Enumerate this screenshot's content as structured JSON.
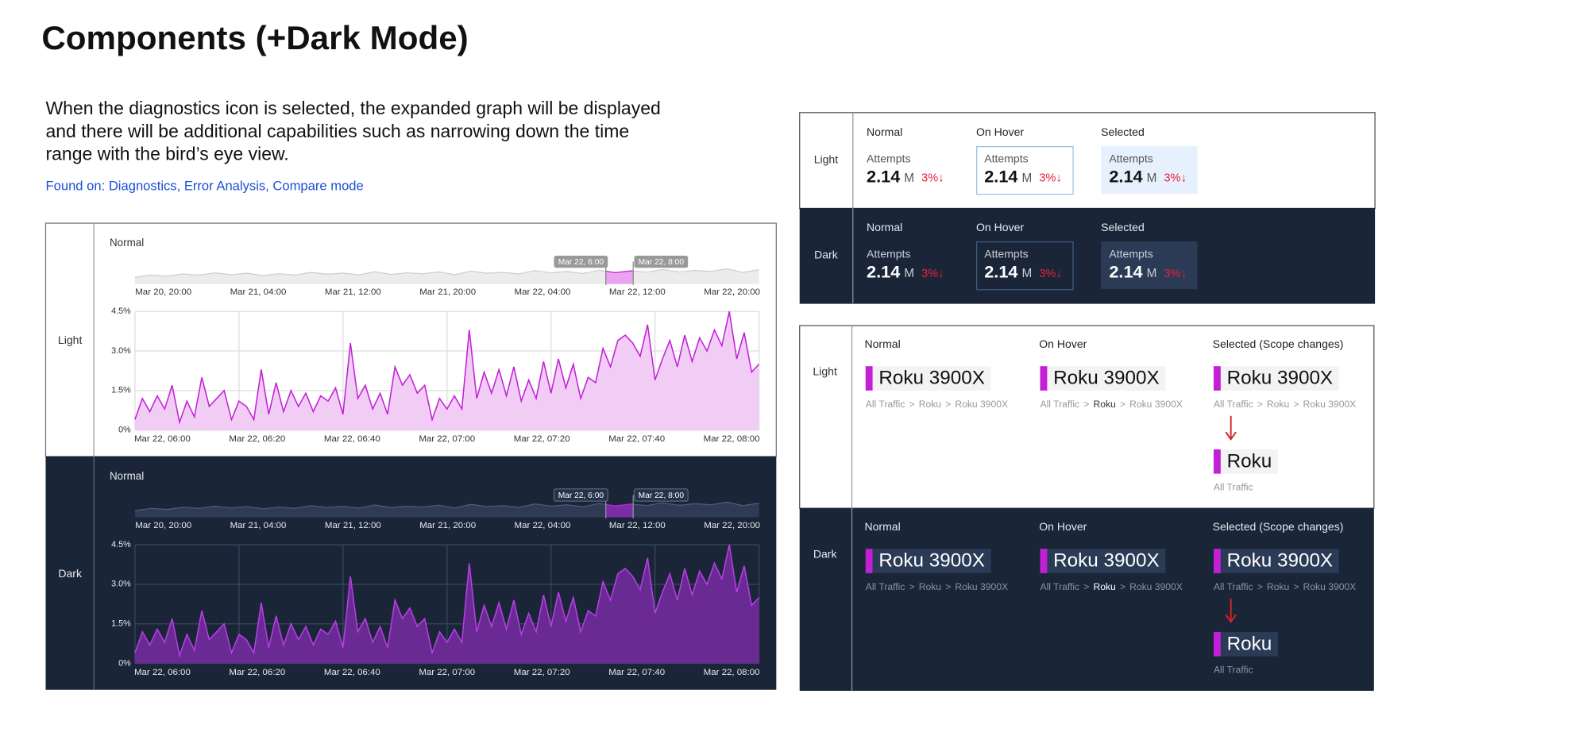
{
  "title": "Components (+Dark Mode)",
  "description": {
    "lines": [
      "When the diagnostics icon is selected, the expanded graph will be displayed",
      "and there will be additional capabilities such as narrowing down the time",
      "range with the bird’s eye view."
    ],
    "found_on": "Found on: Diagnostics, Error Analysis, Compare mode"
  },
  "graph_panel": {
    "sections": [
      {
        "theme": "Light",
        "label": "Normal"
      },
      {
        "theme": "Dark",
        "label": "Normal"
      }
    ],
    "chart_data": {
      "type": "area",
      "color": "#c21fd6",
      "overview": {
        "values": [
          3,
          4,
          3.5,
          4.5,
          4,
          5,
          4.2,
          4.8,
          3.8,
          4.6,
          4,
          5.2,
          4.4,
          4.9,
          4.1,
          5.5,
          4.3,
          5,
          4.6,
          5.4,
          4.2,
          5.8,
          4.8,
          5.2,
          4.5,
          6,
          5,
          5.6,
          4.7,
          6.2,
          5.1,
          5.9,
          5.3,
          6.5,
          5.4,
          6.1,
          5.6,
          6.8,
          5.2,
          6.4
        ],
        "xticks": [
          "Mar 20, 20:00",
          "Mar 21, 04:00",
          "Mar 21, 12:00",
          "Mar 21, 20:00",
          "Mar 22, 04:00",
          "Mar 22, 12:00",
          "Mar 22, 20:00"
        ],
        "selection_labels": [
          "Mar 22, 6:00",
          "Mar 22, 8:00"
        ]
      },
      "main": {
        "values": [
          0.4,
          1.2,
          0.7,
          1.3,
          0.8,
          1.7,
          0.3,
          1.1,
          0.5,
          2.0,
          0.9,
          1.2,
          1.5,
          0.4,
          1.1,
          0.9,
          0.4,
          2.3,
          0.6,
          1.8,
          0.7,
          1.5,
          0.9,
          1.4,
          0.7,
          1.3,
          1.1,
          1.6,
          0.6,
          3.3,
          1.2,
          1.7,
          0.8,
          1.4,
          0.6,
          2.4,
          1.7,
          2.1,
          1.4,
          1.7,
          0.4,
          1.2,
          0.8,
          1.3,
          0.8,
          3.8,
          1.2,
          2.2,
          1.4,
          2.3,
          1.3,
          2.4,
          1.1,
          1.9,
          1.2,
          2.6,
          1.4,
          2.7,
          1.6,
          2.5,
          1.2,
          2.0,
          1.8,
          3.1,
          2.4,
          3.4,
          3.6,
          3.3,
          2.8,
          4.0,
          1.9,
          2.7,
          3.4,
          2.4,
          3.6,
          2.6,
          3.5,
          3.0,
          3.8,
          3.2,
          4.5,
          2.7,
          3.7,
          2.2,
          2.5
        ],
        "ylim": [
          0,
          4.5
        ],
        "yticks": [
          {
            "value": 0,
            "label": "0%"
          },
          {
            "value": 1.5,
            "label": "1.5%"
          },
          {
            "value": 3.0,
            "label": "3.0%"
          },
          {
            "value": 4.5,
            "label": "4.5%"
          }
        ],
        "xticks": [
          "Mar 22, 06:00",
          "Mar 22, 06:20",
          "Mar 22, 06:40",
          "Mar 22, 07:00",
          "Mar 22, 07:20",
          "Mar 22, 07:40",
          "Mar 22, 08:00"
        ]
      }
    }
  },
  "metric_panel": {
    "sections": [
      {
        "theme": "Light",
        "states": [
          {
            "state": "Normal",
            "metric": "Attempts",
            "value": "2.14",
            "unit": "M",
            "change": "3%↓"
          },
          {
            "state": "On Hover",
            "metric": "Attempts",
            "value": "2.14",
            "unit": "M",
            "change": "3%↓"
          },
          {
            "state": "Selected",
            "metric": "Attempts",
            "value": "2.14",
            "unit": "M",
            "change": "3%↓"
          }
        ]
      },
      {
        "theme": "Dark",
        "states": [
          {
            "state": "Normal",
            "metric": "Attempts",
            "value": "2.14",
            "unit": "M",
            "change": "3%↓"
          },
          {
            "state": "On Hover",
            "metric": "Attempts",
            "value": "2.14",
            "unit": "M",
            "change": "3%↓"
          },
          {
            "state": "Selected",
            "metric": "Attempts",
            "value": "2.14",
            "unit": "M",
            "change": "3%↓"
          }
        ]
      }
    ]
  },
  "breadcrumb_panel": {
    "separator": ">",
    "sections": [
      {
        "theme": "Light",
        "states": [
          {
            "state": "Normal",
            "name": "Roku 3900X",
            "crumbs": [
              "All Traffic",
              "Roku",
              "Roku 3900X"
            ]
          },
          {
            "state": "On Hover",
            "name": "Roku 3900X",
            "crumbs": [
              "All Traffic",
              "Roku",
              "Roku 3900X"
            ]
          },
          {
            "state": "Selected (Scope changes)",
            "name": "Roku 3900X",
            "crumbs": [
              "All Traffic",
              "Roku",
              "Roku 3900X"
            ],
            "result": {
              "name": "Roku",
              "crumbs": [
                "All Traffic"
              ]
            }
          }
        ]
      },
      {
        "theme": "Dark",
        "states": [
          {
            "state": "Normal",
            "name": "Roku 3900X",
            "crumbs": [
              "All Traffic",
              "Roku",
              "Roku 3900X"
            ]
          },
          {
            "state": "On Hover",
            "name": "Roku 3900X",
            "crumbs": [
              "All Traffic",
              "Roku",
              "Roku 3900X"
            ]
          },
          {
            "state": "Selected (Scope changes)",
            "name": "Roku 3900X",
            "crumbs": [
              "All Traffic",
              "Roku",
              "Roku 3900X"
            ],
            "result": {
              "name": "Roku",
              "crumbs": [
                "All Traffic"
              ]
            }
          }
        ]
      }
    ]
  }
}
